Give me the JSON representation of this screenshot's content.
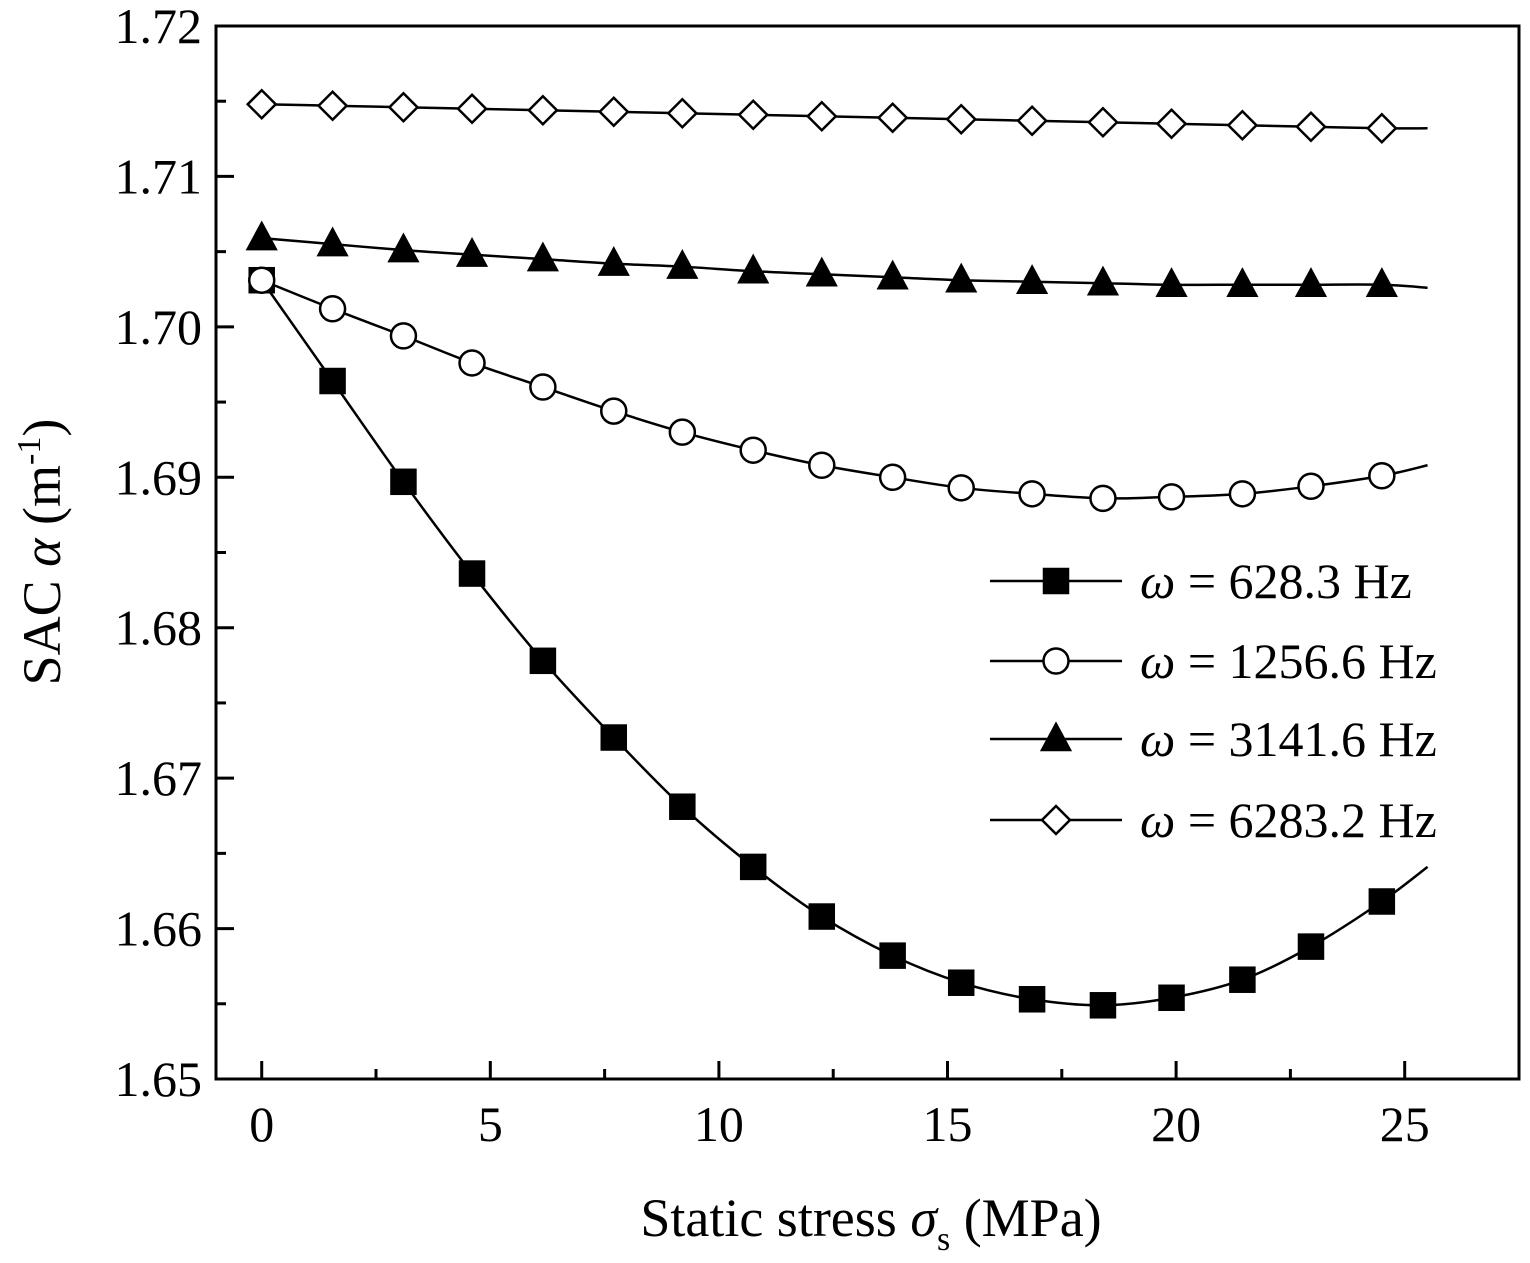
{
  "chart_data": {
    "type": "line",
    "title": "",
    "xlabel": {
      "prefix": "Static stress ",
      "symbol": "σ",
      "subscript": "s",
      "suffix": " (MPa)"
    },
    "ylabel": {
      "prefix": "SAC ",
      "symbol": "α",
      "unit_open": " (m",
      "unit_exp": "-1",
      "unit_close": ")"
    },
    "xlim": [
      -1,
      27.5
    ],
    "ylim": [
      1.65,
      1.72
    ],
    "xticks": [
      0,
      5,
      10,
      15,
      20,
      25
    ],
    "xtick_labels": [
      "0",
      "5",
      "10",
      "15",
      "20",
      "25"
    ],
    "yticks": [
      1.65,
      1.66,
      1.67,
      1.68,
      1.69,
      1.7,
      1.71,
      1.72
    ],
    "ytick_labels": [
      "1.65",
      "1.66",
      "1.67",
      "1.68",
      "1.69",
      "1.70",
      "1.71",
      "1.72"
    ],
    "x_minor_step": 2.5,
    "y_minor_step": 0.005,
    "x": [
      0,
      1.55,
      3.1,
      4.6,
      6.15,
      7.7,
      9.2,
      10.75,
      12.25,
      13.8,
      15.3,
      16.85,
      18.4,
      19.9,
      21.45,
      22.95,
      24.5
    ],
    "line_x_end": 25.5,
    "legend_position": "center-right",
    "series": [
      {
        "name_symbol": "ω",
        "name_rest": " = 628.3 Hz",
        "marker": "square-filled",
        "values": [
          1.7031,
          1.6964,
          1.6897,
          1.6836,
          1.6778,
          1.6727,
          1.6681,
          1.6641,
          1.6608,
          1.6582,
          1.6564,
          1.6553,
          1.6549,
          1.6554,
          1.6566,
          1.6588,
          1.6618
        ],
        "line_end_value": 1.6641
      },
      {
        "name_symbol": "ω",
        "name_rest": " = 1256.6 Hz",
        "marker": "circle-open",
        "values": [
          1.7031,
          1.7012,
          1.6994,
          1.6976,
          1.696,
          1.6944,
          1.693,
          1.6918,
          1.6908,
          1.69,
          1.6893,
          1.6889,
          1.6886,
          1.6887,
          1.6889,
          1.6894,
          1.6901
        ],
        "line_end_value": 1.6908
      },
      {
        "name_symbol": "ω",
        "name_rest": " = 3141.6 Hz",
        "marker": "triangle-filled",
        "values": [
          1.7059,
          1.7055,
          1.7051,
          1.7048,
          1.7045,
          1.7042,
          1.704,
          1.7037,
          1.7035,
          1.7033,
          1.7031,
          1.703,
          1.7029,
          1.7028,
          1.7028,
          1.7028,
          1.7028
        ],
        "line_end_value": 1.7026
      },
      {
        "name_symbol": "ω",
        "name_rest": " = 6283.2 Hz",
        "marker": "diamond-open",
        "values": [
          1.7148,
          1.7147,
          1.7146,
          1.7145,
          1.7144,
          1.7143,
          1.7142,
          1.7141,
          1.714,
          1.7139,
          1.7138,
          1.7137,
          1.7136,
          1.7135,
          1.7134,
          1.7133,
          1.7132
        ],
        "line_end_value": 1.7132
      }
    ],
    "colors": {
      "line": "#000000",
      "fill": "#000000",
      "open_fill": "#ffffff"
    }
  }
}
